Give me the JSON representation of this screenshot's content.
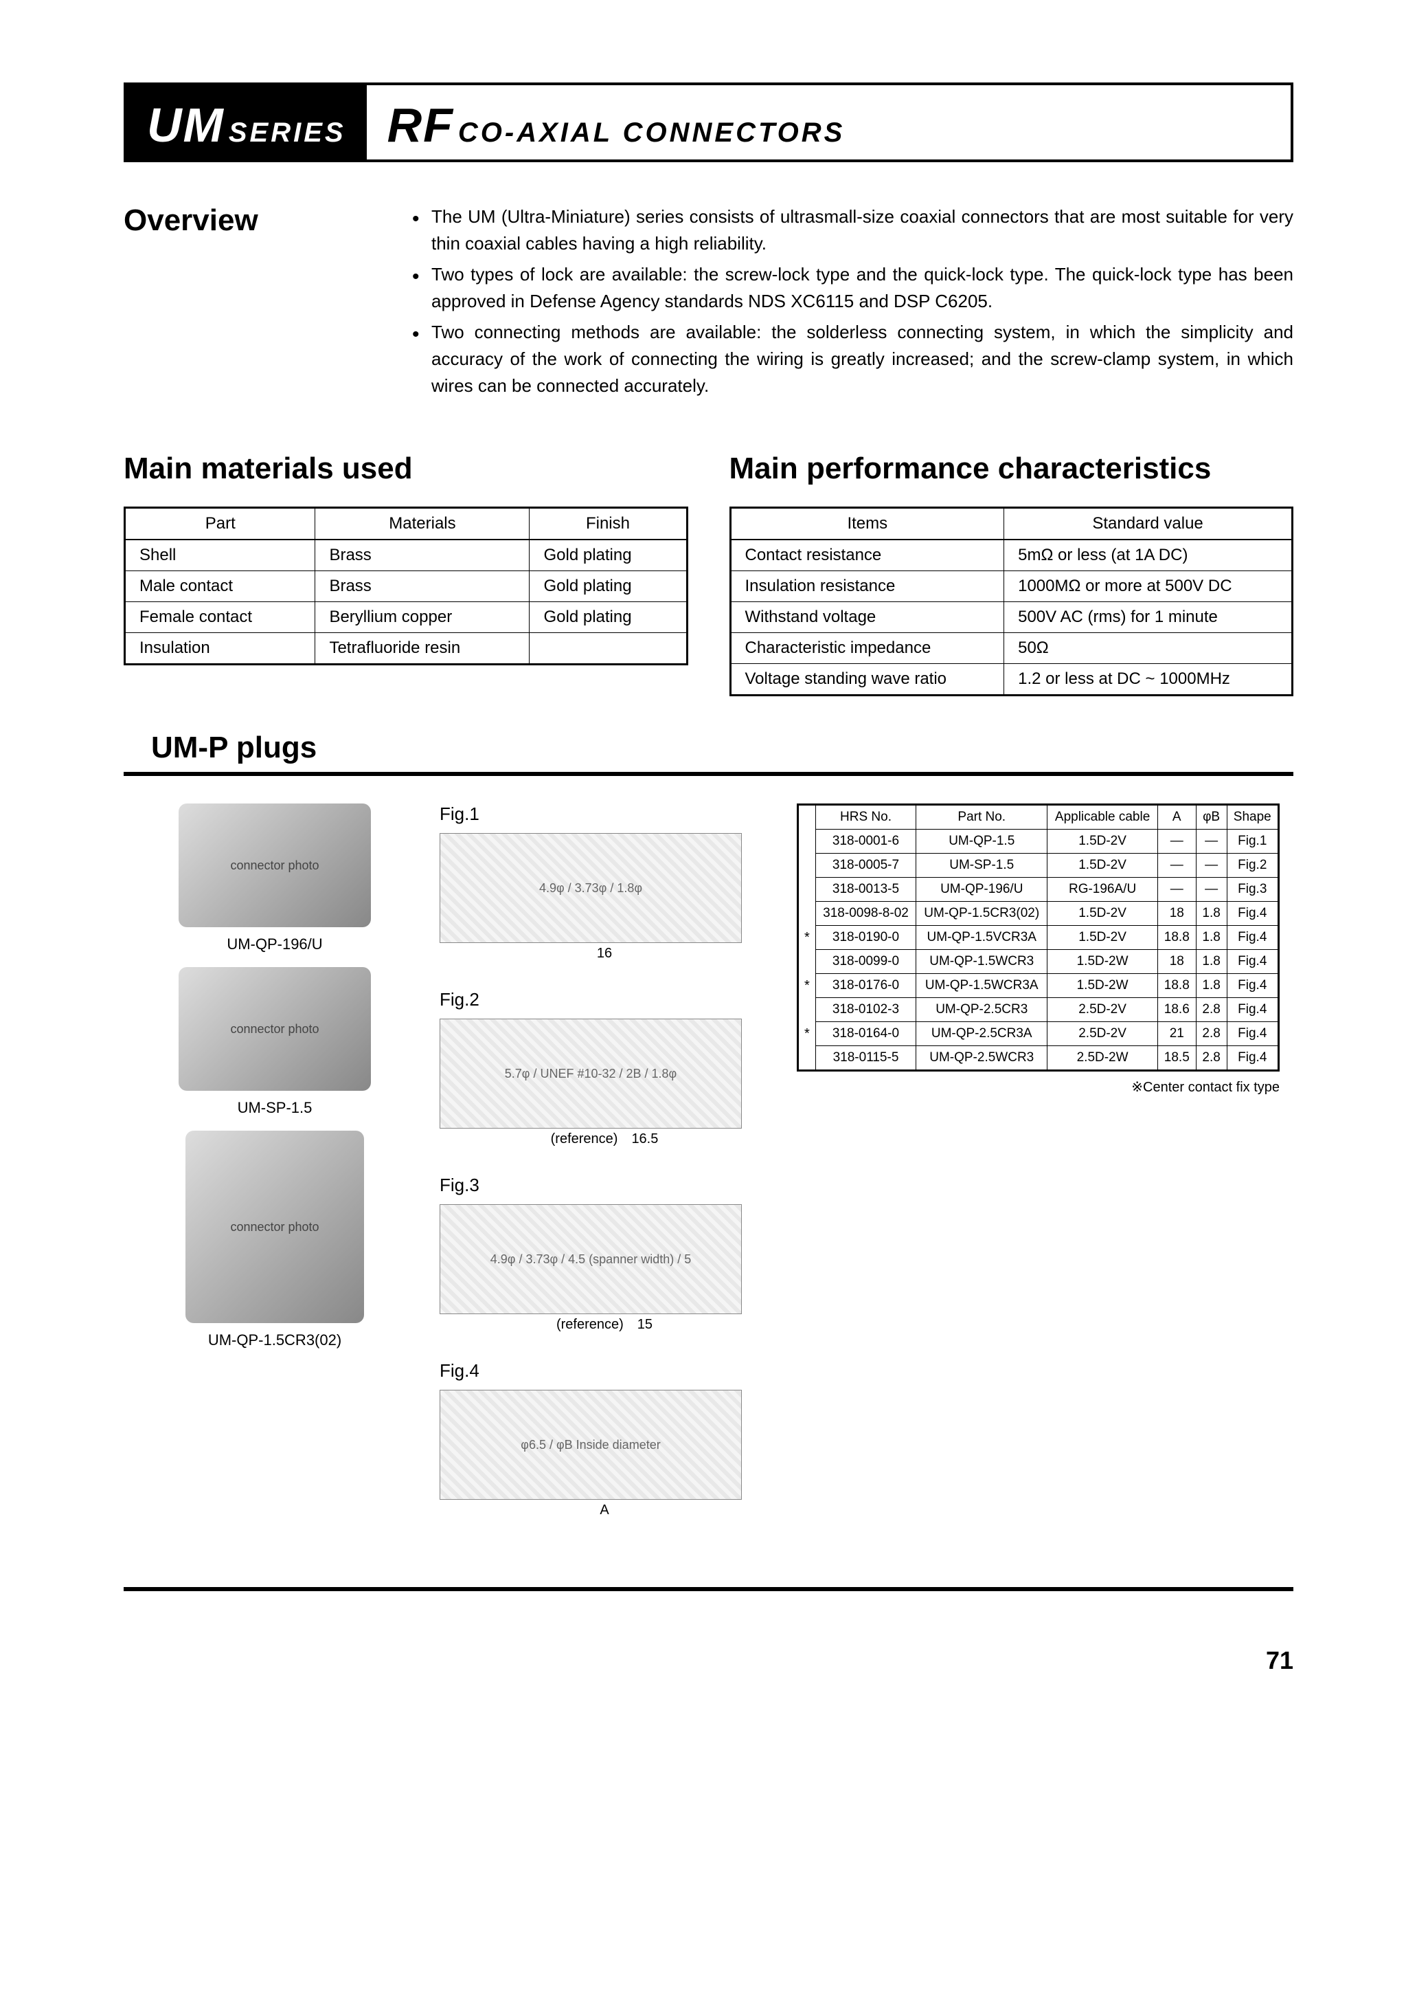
{
  "title": {
    "left_big": "UM",
    "left_small": "SERIES",
    "right_big": "RF",
    "right_small": "CO-AXIAL CONNECTORS"
  },
  "overview": {
    "heading": "Overview",
    "bullets": [
      "The UM (Ultra-Miniature) series consists of ultrasmall-size coaxial connectors that are most suitable for very thin coaxial cables having a high reliability.",
      "Two types of lock are available: the screw-lock type and the quick-lock type. The quick-lock type has been approved in Defense Agency standards NDS XC6115 and DSP C6205.",
      "Two connecting methods are available: the solderless connecting system, in which the simplicity and accuracy of the work of connecting the wiring is greatly increased; and the screw-clamp system, in which wires can be connected accurately."
    ]
  },
  "materials": {
    "heading": "Main materials used",
    "columns": [
      "Part",
      "Materials",
      "Finish"
    ],
    "rows": [
      [
        "Shell",
        "Brass",
        "Gold plating"
      ],
      [
        "Male contact",
        "Brass",
        "Gold plating"
      ],
      [
        "Female contact",
        "Beryllium copper",
        "Gold plating"
      ],
      [
        "Insulation",
        "Tetrafluoride resin",
        ""
      ]
    ]
  },
  "performance": {
    "heading": "Main performance characteristics",
    "columns": [
      "Items",
      "Standard value"
    ],
    "rows": [
      [
        "Contact resistance",
        "5mΩ or less (at 1A DC)"
      ],
      [
        "Insulation resistance",
        "1000MΩ or more at 500V DC"
      ],
      [
        "Withstand voltage",
        "500V AC (rms) for 1 minute"
      ],
      [
        "Characteristic impedance",
        "50Ω"
      ],
      [
        "Voltage standing wave ratio",
        "1.2 or less at DC ~ 1000MHz"
      ]
    ]
  },
  "plugs": {
    "heading": "UM-P plugs",
    "photos": [
      {
        "caption": "UM-QP-196/U",
        "alt": "connector photo"
      },
      {
        "caption": "UM-SP-1.5",
        "alt": "connector photo"
      },
      {
        "caption": "UM-QP-1.5CR3(02)",
        "alt": "connector photo",
        "long": true
      }
    ],
    "figures": [
      {
        "label": "Fig.1",
        "dims": "16",
        "extra": "4.9φ / 3.73φ / 1.8φ"
      },
      {
        "label": "Fig.2",
        "dims": "16.5",
        "ref": "(reference)",
        "extra": "5.7φ / UNEF #10-32 / 2B / 1.8φ"
      },
      {
        "label": "Fig.3",
        "dims": "15",
        "ref": "(reference)",
        "extra": "4.9φ / 3.73φ / 4.5 (spanner width) / 5"
      },
      {
        "label": "Fig.4",
        "dims": "A",
        "extra": "φ6.5 / φB Inside diameter"
      }
    ],
    "table": {
      "columns": [
        "HRS No.",
        "Part No.",
        "Applicable cable",
        "A",
        "φB",
        "Shape"
      ],
      "rows": [
        {
          "star": false,
          "cells": [
            "318-0001-6",
            "UM-QP-1.5",
            "1.5D-2V",
            "—",
            "—",
            "Fig.1"
          ]
        },
        {
          "star": false,
          "cells": [
            "318-0005-7",
            "UM-SP-1.5",
            "1.5D-2V",
            "—",
            "—",
            "Fig.2"
          ]
        },
        {
          "star": false,
          "cells": [
            "318-0013-5",
            "UM-QP-196/U",
            "RG-196A/U",
            "—",
            "—",
            "Fig.3"
          ]
        },
        {
          "star": false,
          "cells": [
            "318-0098-8-02",
            "UM-QP-1.5CR3(02)",
            "1.5D-2V",
            "18",
            "1.8",
            "Fig.4"
          ]
        },
        {
          "star": true,
          "cells": [
            "318-0190-0",
            "UM-QP-1.5VCR3A",
            "1.5D-2V",
            "18.8",
            "1.8",
            "Fig.4"
          ]
        },
        {
          "star": false,
          "cells": [
            "318-0099-0",
            "UM-QP-1.5WCR3",
            "1.5D-2W",
            "18",
            "1.8",
            "Fig.4"
          ]
        },
        {
          "star": true,
          "cells": [
            "318-0176-0",
            "UM-QP-1.5WCR3A",
            "1.5D-2W",
            "18.8",
            "1.8",
            "Fig.4"
          ]
        },
        {
          "star": false,
          "cells": [
            "318-0102-3",
            "UM-QP-2.5CR3",
            "2.5D-2V",
            "18.6",
            "2.8",
            "Fig.4"
          ]
        },
        {
          "star": true,
          "cells": [
            "318-0164-0",
            "UM-QP-2.5CR3A",
            "2.5D-2V",
            "21",
            "2.8",
            "Fig.4"
          ]
        },
        {
          "star": false,
          "cells": [
            "318-0115-5",
            "UM-QP-2.5WCR3",
            "2.5D-2W",
            "18.5",
            "2.8",
            "Fig.4"
          ]
        }
      ],
      "note": "※Center contact fix type"
    }
  },
  "page_number": "71",
  "colors": {
    "text": "#000000",
    "background": "#ffffff",
    "rule": "#000000",
    "diagram_fill": "#f0f0f0"
  }
}
